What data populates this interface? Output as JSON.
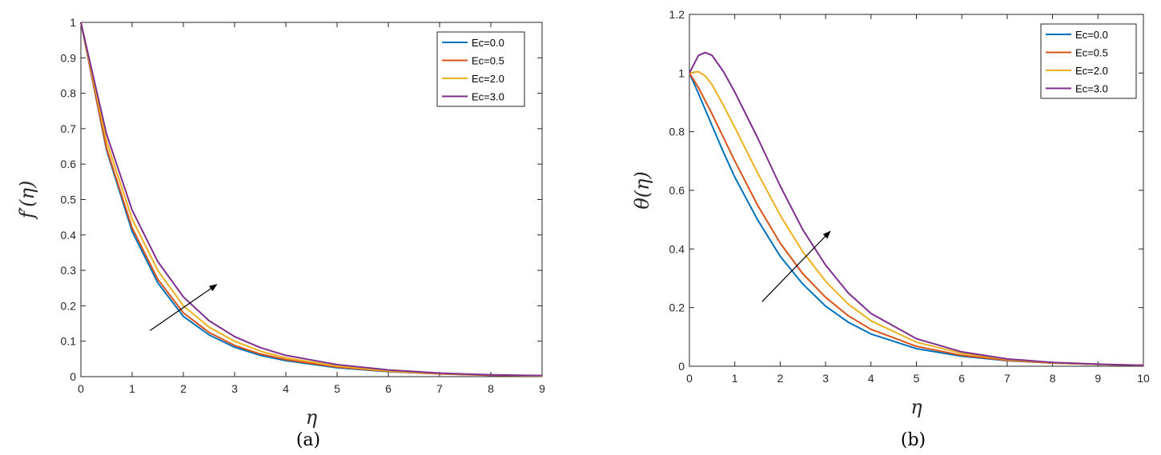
{
  "panels": [
    {
      "caption": "(a)",
      "xlabel": "η",
      "ylabel": "f′(η)"
    },
    {
      "caption": "(b)",
      "xlabel": "η",
      "ylabel": "θ(η)"
    }
  ],
  "colors": {
    "Ec=0.0": "#0072bd",
    "Ec=0.5": "#d95319",
    "Ec=2.0": "#edb120",
    "Ec=3.0": "#7e2f8e"
  },
  "chart_data": [
    {
      "type": "line",
      "title": "",
      "caption": "(a)",
      "xlabel": "η",
      "ylabel": "f′(η)",
      "xlim": [
        0,
        9
      ],
      "ylim": [
        0,
        1
      ],
      "xticks": [
        0,
        1,
        2,
        3,
        4,
        5,
        6,
        7,
        8,
        9
      ],
      "yticks": [
        0,
        0.1,
        0.2,
        0.3,
        0.4,
        0.5,
        0.6,
        0.7,
        0.8,
        0.9,
        1
      ],
      "ytick_labels": [
        "0",
        "0.1",
        "0.2",
        "0.3",
        "0.4",
        "0.5",
        "0.6",
        "0.7",
        "0.8",
        "0.9",
        "1"
      ],
      "grid": false,
      "legend": "top-right",
      "arrow": {
        "from": [
          1.35,
          0.13
        ],
        "to": [
          2.65,
          0.26
        ]
      },
      "x": [
        0,
        0.5,
        1,
        1.5,
        2,
        2.5,
        3,
        3.5,
        4,
        5,
        6,
        7,
        8,
        9
      ],
      "series": [
        {
          "name": "Ec=0.0",
          "values": [
            1,
            0.64,
            0.41,
            0.265,
            0.17,
            0.118,
            0.083,
            0.06,
            0.045,
            0.025,
            0.014,
            0.008,
            0.004,
            0.002
          ]
        },
        {
          "name": "Ec=0.5",
          "values": [
            1,
            0.645,
            0.42,
            0.275,
            0.18,
            0.125,
            0.088,
            0.064,
            0.048,
            0.027,
            0.015,
            0.008,
            0.004,
            0.002
          ]
        },
        {
          "name": "Ec=2.0",
          "values": [
            1,
            0.665,
            0.445,
            0.3,
            0.2,
            0.14,
            0.1,
            0.072,
            0.053,
            0.03,
            0.016,
            0.009,
            0.005,
            0.002
          ]
        },
        {
          "name": "Ec=3.0",
          "values": [
            1,
            0.685,
            0.47,
            0.325,
            0.225,
            0.158,
            0.113,
            0.082,
            0.06,
            0.034,
            0.019,
            0.01,
            0.005,
            0.003
          ]
        }
      ]
    },
    {
      "type": "line",
      "title": "",
      "caption": "(b)",
      "xlabel": "η",
      "ylabel": "θ(η)",
      "xlim": [
        0,
        10
      ],
      "ylim": [
        0,
        1.2
      ],
      "xticks": [
        0,
        1,
        2,
        3,
        4,
        5,
        6,
        7,
        8,
        9,
        10
      ],
      "yticks": [
        0,
        0.2,
        0.4,
        0.6,
        0.8,
        1,
        1.2
      ],
      "ytick_labels": [
        "0",
        "0.2",
        "0.4",
        "0.6",
        "0.8",
        "1",
        "1.2"
      ],
      "grid": false,
      "legend": "top-right",
      "arrow": {
        "from": [
          1.6,
          0.22
        ],
        "to": [
          3.1,
          0.46
        ]
      },
      "x": [
        0,
        0.2,
        0.35,
        0.5,
        0.75,
        1,
        1.5,
        2,
        2.5,
        3,
        3.5,
        4,
        5,
        6,
        7,
        8,
        9,
        10
      ],
      "series": [
        {
          "name": "Ec=0.0",
          "values": [
            1,
            0.93,
            0.875,
            0.82,
            0.73,
            0.645,
            0.5,
            0.375,
            0.28,
            0.205,
            0.15,
            0.11,
            0.06,
            0.034,
            0.019,
            0.011,
            0.006,
            0.003
          ]
        },
        {
          "name": "Ec=0.5",
          "values": [
            1,
            0.95,
            0.905,
            0.86,
            0.78,
            0.7,
            0.55,
            0.42,
            0.315,
            0.235,
            0.172,
            0.126,
            0.068,
            0.037,
            0.02,
            0.011,
            0.006,
            0.003
          ]
        },
        {
          "name": "Ec=2.0",
          "values": [
            1,
            1.005,
            0.99,
            0.96,
            0.89,
            0.815,
            0.66,
            0.515,
            0.39,
            0.29,
            0.212,
            0.155,
            0.082,
            0.044,
            0.023,
            0.012,
            0.006,
            0.003
          ]
        },
        {
          "name": "Ec=3.0",
          "values": [
            1,
            1.06,
            1.07,
            1.06,
            1.005,
            0.935,
            0.78,
            0.615,
            0.465,
            0.345,
            0.25,
            0.18,
            0.094,
            0.049,
            0.025,
            0.013,
            0.007,
            0.003
          ]
        }
      ]
    }
  ]
}
